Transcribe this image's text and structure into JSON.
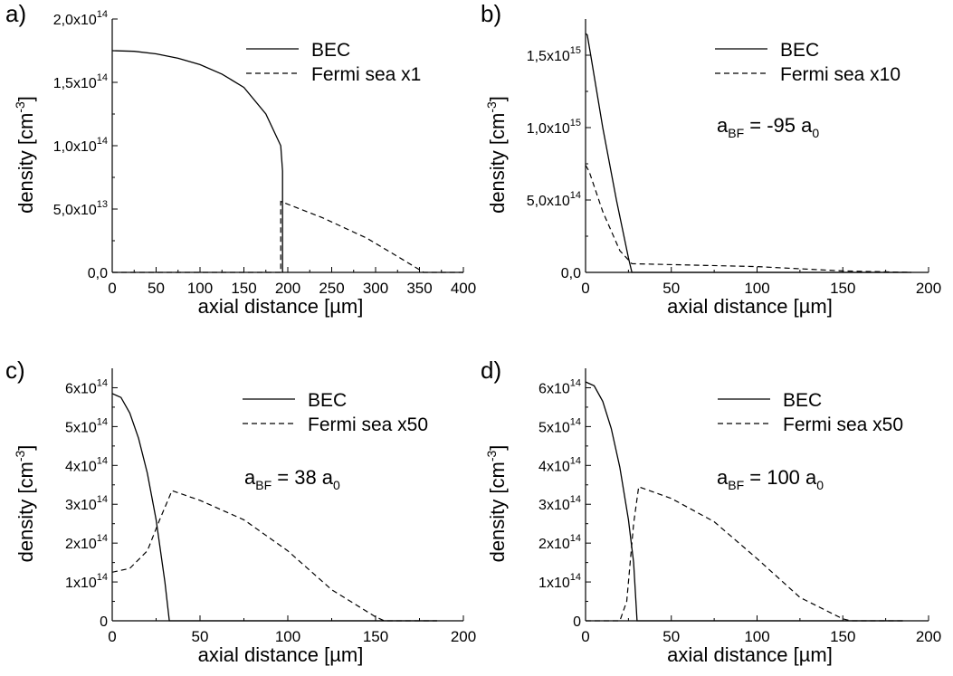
{
  "chart_data": [
    {
      "panel": "a)",
      "type": "line",
      "xlabel": "axial distance [µm]",
      "ylabel": "density [cm-3]",
      "xlim": [
        0,
        400
      ],
      "ylim": [
        0,
        200000000000000.0
      ],
      "xticks": [
        0,
        50,
        100,
        150,
        200,
        250,
        300,
        350,
        400
      ],
      "xtick_labels": [
        "0",
        "50",
        "100",
        "150",
        "200",
        "250",
        "300",
        "350",
        "400"
      ],
      "yticks": [
        0,
        50000000000000.0,
        100000000000000.0,
        150000000000000.0,
        200000000000000.0
      ],
      "ytick_labels": [
        {
          "m": "0,0",
          "e": ""
        },
        {
          "m": "5,0x10",
          "e": "13"
        },
        {
          "m": "1,0x10",
          "e": "14"
        },
        {
          "m": "1,5x10",
          "e": "14"
        },
        {
          "m": "2,0x10",
          "e": "14"
        }
      ],
      "annotation": null,
      "series": [
        {
          "name": "BEC",
          "style": "solid",
          "points": [
            [
              0,
              175000000000000.0
            ],
            [
              25,
              174500000000000.0
            ],
            [
              50,
              172500000000000.0
            ],
            [
              75,
              169000000000000.0
            ],
            [
              100,
              164000000000000.0
            ],
            [
              125,
              156500000000000.0
            ],
            [
              150,
              146000000000000.0
            ],
            [
              175,
              125000000000000.0
            ],
            [
              192,
              100000000000000.0
            ],
            [
              194,
              80000000000000.0
            ],
            [
              194,
              0
            ]
          ]
        },
        {
          "name": "Fermi sea x1",
          "style": "dashed",
          "points": [
            [
              0,
              0
            ],
            [
              192,
              0
            ],
            [
              192,
              56000000000000.0
            ],
            [
              240,
              43000000000000.0
            ],
            [
              290,
              27000000000000.0
            ],
            [
              330,
              10500000000000.0
            ],
            [
              355,
              0
            ],
            [
              400,
              0
            ]
          ]
        }
      ]
    },
    {
      "panel": "b)",
      "type": "line",
      "xlabel": "axial distance [µm]",
      "ylabel": "density [cm-3]",
      "xlim": [
        0,
        200
      ],
      "ylim": [
        0,
        1750000000000000.0
      ],
      "xticks": [
        0,
        50,
        100,
        150,
        200
      ],
      "xtick_labels": [
        "0",
        "50",
        "100",
        "150",
        "200"
      ],
      "yticks": [
        0,
        500000000000000.0,
        1000000000000000.0,
        1500000000000000.0
      ],
      "ytick_labels": [
        {
          "m": "0,0",
          "e": ""
        },
        {
          "m": "5,0x10",
          "e": "14"
        },
        {
          "m": "1,0x10",
          "e": "15"
        },
        {
          "m": "1,5x10",
          "e": "15"
        }
      ],
      "annotation": {
        "main": "a",
        "sub": "BF",
        "value": " = -95 a",
        "sub2": "0"
      },
      "series": [
        {
          "name": "BEC",
          "style": "solid",
          "points": [
            [
              0,
              1650000000000000.0
            ],
            [
              1,
              1640000000000000.0
            ],
            [
              3,
              1500000000000000.0
            ],
            [
              10,
              1000000000000000.0
            ],
            [
              18,
              500000000000000.0
            ],
            [
              25,
              100000000000000.0
            ],
            [
              27,
              0
            ],
            [
              190,
              0
            ]
          ]
        },
        {
          "name": "Fermi sea x10",
          "style": "dashed",
          "points": [
            [
              0,
              740000000000000.0
            ],
            [
              2,
              700000000000000.0
            ],
            [
              10,
              420000000000000.0
            ],
            [
              20,
              150000000000000.0
            ],
            [
              27,
              60000000000000.0
            ],
            [
              100,
              40000000000000.0
            ],
            [
              150,
              10000000000000.0
            ],
            [
              190,
              0
            ]
          ]
        }
      ]
    },
    {
      "panel": "c)",
      "type": "line",
      "xlabel": "axial distance [µm]",
      "ylabel": "density [cm-3]",
      "xlim": [
        0,
        200
      ],
      "ylim": [
        0,
        650000000000000.0
      ],
      "xticks": [
        0,
        50,
        100,
        150,
        200
      ],
      "xtick_labels": [
        "0",
        "50",
        "100",
        "150",
        "200"
      ],
      "yticks": [
        0,
        100000000000000.0,
        200000000000000.0,
        300000000000000.0,
        400000000000000.0,
        500000000000000.0,
        600000000000000.0
      ],
      "ytick_labels": [
        {
          "m": "0",
          "e": ""
        },
        {
          "m": "1x10",
          "e": "14"
        },
        {
          "m": "2x10",
          "e": "14"
        },
        {
          "m": "3x10",
          "e": "14"
        },
        {
          "m": "4x10",
          "e": "14"
        },
        {
          "m": "5x10",
          "e": "14"
        },
        {
          "m": "6x10",
          "e": "14"
        }
      ],
      "annotation": {
        "main": "a",
        "sub": "BF",
        "value": " = 38 a",
        "sub2": "0"
      },
      "series": [
        {
          "name": "BEC",
          "style": "solid",
          "points": [
            [
              0,
              585000000000000.0
            ],
            [
              5,
              575000000000000.0
            ],
            [
              10,
              535000000000000.0
            ],
            [
              15,
              470000000000000.0
            ],
            [
              20,
              380000000000000.0
            ],
            [
              25,
              260000000000000.0
            ],
            [
              30,
              100000000000000.0
            ],
            [
              32.5,
              0
            ],
            [
              185,
              0
            ]
          ]
        },
        {
          "name": "Fermi sea x50",
          "style": "dashed",
          "points": [
            [
              0,
              125000000000000.0
            ],
            [
              10,
              135000000000000.0
            ],
            [
              20,
              180000000000000.0
            ],
            [
              27,
              260000000000000.0
            ],
            [
              34,
              335000000000000.0
            ],
            [
              50,
              310000000000000.0
            ],
            [
              75,
              260000000000000.0
            ],
            [
              100,
              180000000000000.0
            ],
            [
              125,
              80000000000000.0
            ],
            [
              150,
              10000000000000.0
            ],
            [
              155,
              0
            ],
            [
              185,
              0
            ]
          ]
        }
      ]
    },
    {
      "panel": "d)",
      "type": "line",
      "xlabel": "axial distance [µm]",
      "ylabel": "density [cm-3]",
      "xlim": [
        0,
        200
      ],
      "ylim": [
        0,
        650000000000000.0
      ],
      "xticks": [
        0,
        50,
        100,
        150,
        200
      ],
      "xtick_labels": [
        "0",
        "50",
        "100",
        "150",
        "200"
      ],
      "yticks": [
        0,
        100000000000000.0,
        200000000000000.0,
        300000000000000.0,
        400000000000000.0,
        500000000000000.0,
        600000000000000.0
      ],
      "ytick_labels": [
        {
          "m": "0",
          "e": ""
        },
        {
          "m": "1x10",
          "e": "14"
        },
        {
          "m": "2x10",
          "e": "14"
        },
        {
          "m": "3x10",
          "e": "14"
        },
        {
          "m": "4x10",
          "e": "14"
        },
        {
          "m": "5x10",
          "e": "14"
        },
        {
          "m": "6x10",
          "e": "14"
        }
      ],
      "annotation": {
        "main": "a",
        "sub": "BF",
        "value": " = 100 a",
        "sub2": "0"
      },
      "series": [
        {
          "name": "BEC",
          "style": "solid",
          "points": [
            [
              0,
              615000000000000.0
            ],
            [
              5,
              605000000000000.0
            ],
            [
              10,
              565000000000000.0
            ],
            [
              15,
              495000000000000.0
            ],
            [
              20,
              395000000000000.0
            ],
            [
              25,
              260000000000000.0
            ],
            [
              28,
              150000000000000.0
            ],
            [
              30,
              0
            ],
            [
              185,
              0
            ]
          ]
        },
        {
          "name": "Fermi sea x50",
          "style": "dashed",
          "points": [
            [
              0,
              0
            ],
            [
              20,
              0
            ],
            [
              24,
              50000000000000.0
            ],
            [
              28,
              250000000000000.0
            ],
            [
              31,
              345000000000000.0
            ],
            [
              50,
              315000000000000.0
            ],
            [
              75,
              255000000000000.0
            ],
            [
              100,
              160000000000000.0
            ],
            [
              125,
              60000000000000.0
            ],
            [
              150,
              5000000000000.0
            ],
            [
              155,
              0
            ],
            [
              185,
              0
            ]
          ]
        }
      ]
    }
  ]
}
